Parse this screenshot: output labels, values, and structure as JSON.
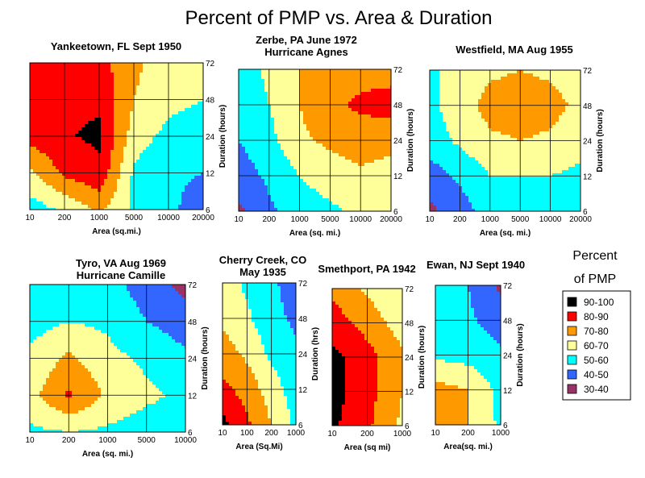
{
  "title": "Percent of PMP   vs.  Area & Duration",
  "legend": {
    "title_line1": "Percent",
    "title_line2": "of PMP",
    "items": [
      {
        "label": "90-100",
        "color": "#000000"
      },
      {
        "label": "80-90",
        "color": "#ff0000"
      },
      {
        "label": "70-80",
        "color": "#ff9900"
      },
      {
        "label": "60-70",
        "color": "#ffff99"
      },
      {
        "label": "50-60",
        "color": "#00ffff"
      },
      {
        "label": "40-50",
        "color": "#3366ff"
      },
      {
        "label": "30-40",
        "color": "#993366"
      }
    ]
  },
  "chart_data": [
    {
      "type": "heatmap",
      "title": [
        "Yankeetown, FL  Sept 1950"
      ],
      "xlabel": "Area (sq.mi.)",
      "ylabel": "Duration (hours)",
      "xticks": [
        "10",
        "200",
        "1000",
        "5000",
        "10000",
        "20000"
      ],
      "yticks": [
        "6",
        "12",
        "24",
        "48",
        "72"
      ],
      "x": [
        10,
        200,
        1000,
        5000,
        10000,
        20000
      ],
      "y": [
        6,
        12,
        24,
        48,
        72
      ],
      "z": [
        [
          55,
          62,
          72,
          58,
          52,
          45
        ],
        [
          68,
          82,
          88,
          58,
          52,
          50
        ],
        [
          84,
          89,
          92,
          65,
          57,
          55
        ],
        [
          86,
          89,
          88,
          70,
          63,
          60
        ],
        [
          86,
          88,
          84,
          72,
          65,
          63
        ]
      ]
    },
    {
      "type": "heatmap",
      "title": [
        "Zerbe, PA June 1972",
        "Hurricane Agnes"
      ],
      "xlabel": "Area (sq. mi.)",
      "ylabel": "Duration (hours)",
      "xticks": [
        "10",
        "200",
        "1000",
        "5000",
        "10000",
        "20000"
      ],
      "yticks": [
        "6",
        "12",
        "24",
        "48",
        "72"
      ],
      "x": [
        10,
        200,
        1000,
        5000,
        10000,
        20000
      ],
      "y": [
        6,
        12,
        24,
        48,
        72
      ],
      "z": [
        [
          38,
          48,
          55,
          58,
          62,
          62
        ],
        [
          45,
          52,
          60,
          65,
          68,
          66
        ],
        [
          50,
          57,
          68,
          72,
          75,
          73
        ],
        [
          53,
          60,
          70,
          78,
          82,
          84
        ],
        [
          55,
          62,
          70,
          75,
          76,
          76
        ]
      ]
    },
    {
      "type": "heatmap",
      "title": [
        "Westfield, MA Aug 1955"
      ],
      "xlabel": "Area (sq. mi.)",
      "ylabel": "Duration (hours)",
      "xticks": [
        "10",
        "200",
        "1000",
        "5000",
        "10000",
        "20000"
      ],
      "yticks": [
        "6",
        "12",
        "24",
        "48",
        "72"
      ],
      "x": [
        10,
        200,
        1000,
        5000,
        10000,
        20000
      ],
      "y": [
        6,
        12,
        24,
        48,
        72
      ],
      "z": [
        [
          38,
          45,
          55,
          58,
          58,
          58
        ],
        [
          45,
          52,
          60,
          60,
          60,
          58
        ],
        [
          55,
          62,
          68,
          70,
          68,
          63
        ],
        [
          58,
          65,
          74,
          76,
          74,
          67
        ],
        [
          58,
          64,
          68,
          70,
          68,
          65
        ]
      ]
    },
    {
      "type": "heatmap",
      "title": [
        "Tyro, VA  Aug 1969",
        "Hurricane Camille"
      ],
      "xlabel": "Area (sq. mi.)",
      "ylabel": "Duration (hours)",
      "xticks": [
        "10",
        "200",
        "1000",
        "5000",
        "10000"
      ],
      "yticks": [
        "6",
        "12",
        "24",
        "48",
        "72"
      ],
      "x": [
        10,
        200,
        1000,
        5000,
        10000
      ],
      "y": [
        6,
        12,
        24,
        48,
        72
      ],
      "z": [
        [
          58,
          60,
          58,
          55,
          55
        ],
        [
          66,
          82,
          68,
          62,
          58
        ],
        [
          62,
          72,
          63,
          58,
          52
        ],
        [
          56,
          60,
          58,
          50,
          45
        ],
        [
          55,
          56,
          54,
          45,
          37
        ]
      ]
    },
    {
      "type": "heatmap",
      "title": [
        "Cherry Creek, CO",
        "May 1935"
      ],
      "xlabel": "Area (Sq.Mi)",
      "ylabel": "Duration (hrs)",
      "xticks": [
        "10",
        "100",
        "200",
        "1000"
      ],
      "yticks": [
        "6",
        "12",
        "24",
        "48",
        "72"
      ],
      "x": [
        10,
        100,
        200,
        1000
      ],
      "y": [
        6,
        12,
        24,
        48,
        72
      ],
      "z": [
        [
          93,
          82,
          70,
          58
        ],
        [
          83,
          76,
          65,
          55
        ],
        [
          75,
          68,
          58,
          52
        ],
        [
          68,
          62,
          53,
          48
        ],
        [
          65,
          58,
          52,
          45
        ]
      ]
    },
    {
      "type": "heatmap",
      "title": [
        "Smethport, PA 1942"
      ],
      "xlabel": "Area (sq mi)",
      "ylabel": "Duration (hours)",
      "xticks": [
        "10",
        "200",
        "1000"
      ],
      "yticks": [
        "6",
        "12",
        "24",
        "48",
        "72"
      ],
      "x": [
        10,
        200,
        1000
      ],
      "y": [
        6,
        12,
        24,
        48,
        72
      ],
      "z": [
        [
          92,
          82,
          68
        ],
        [
          94,
          84,
          70
        ],
        [
          93,
          84,
          72
        ],
        [
          85,
          76,
          65
        ],
        [
          78,
          68,
          60
        ]
      ]
    },
    {
      "type": "heatmap",
      "title": [
        "Ewan, NJ  Sept 1940"
      ],
      "xlabel": "Area(sq. mi.)",
      "ylabel": "Duration (hours)",
      "xticks": [
        "10",
        "200",
        "1000"
      ],
      "yticks": [
        "6",
        "12",
        "24",
        "48",
        "72"
      ],
      "x": [
        10,
        200,
        1000
      ],
      "y": [
        6,
        12,
        24,
        48,
        72
      ],
      "z": [
        [
          72,
          70,
          58
        ],
        [
          74,
          70,
          57
        ],
        [
          58,
          56,
          52
        ],
        [
          56,
          52,
          45
        ],
        [
          55,
          50,
          38
        ]
      ]
    }
  ]
}
